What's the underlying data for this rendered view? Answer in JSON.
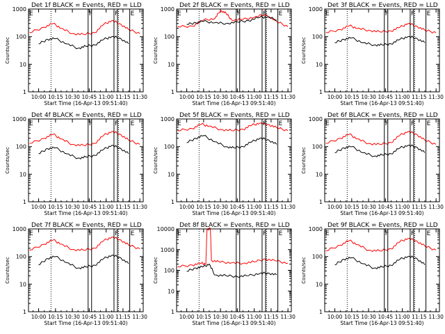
{
  "chart_data": [
    {
      "type": "line",
      "title": "Det 1f BLACK = Events, RED = LLD",
      "ylabel": "Counts/sec",
      "xlabel": "Start Time (16-Apr-13 09:51:40)",
      "yscale": "log",
      "ylim": [
        1,
        1000
      ],
      "yticks": [
        "1",
        "10",
        "100",
        "1000"
      ],
      "xticks": [
        "10:00",
        "10:15",
        "10:30",
        "10:45",
        "11:00",
        "11:15",
        "11:30"
      ],
      "markers": [
        "F",
        "F",
        "E"
      ],
      "series": [
        {
          "name": "LLD",
          "color": "#ff0000",
          "x": [
            "09:52",
            "10:05",
            "10:13",
            "10:20",
            "10:30",
            "10:40",
            "10:50",
            "10:58",
            "11:05",
            "11:12",
            "11:20",
            "11:30"
          ],
          "values": [
            140,
            220,
            300,
            200,
            130,
            120,
            140,
            280,
            380,
            300,
            180,
            130
          ]
        },
        {
          "name": "Events",
          "color": "#000000",
          "x": [
            "10:00",
            "10:08",
            "10:15",
            "10:25",
            "10:35",
            "10:42",
            "10:50",
            "10:58",
            "11:05",
            "11:12",
            "11:20"
          ],
          "values": [
            55,
            80,
            85,
            55,
            38,
            45,
            50,
            80,
            100,
            90,
            55
          ]
        }
      ]
    },
    {
      "type": "line",
      "title": "Det 2f BLACK = Events, RED = LLD",
      "ylabel": "Counts/sec",
      "xlabel": "Start Time (16-Apr-13 09:51:40)",
      "yscale": "log",
      "ylim": [
        1,
        1000
      ],
      "yticks": [
        "1",
        "10",
        "100",
        "1000"
      ],
      "xticks": [
        "10:00",
        "10:15",
        "10:30",
        "10:45",
        "11:00",
        "11:15",
        "11:30"
      ],
      "markers": [
        "F",
        "F",
        "E"
      ],
      "series": [
        {
          "name": "LLD",
          "color": "#ff0000",
          "x": [
            "09:52",
            "10:05",
            "10:15",
            "10:25",
            "10:30",
            "10:35",
            "10:40",
            "10:50",
            "11:00",
            "11:10",
            "11:20",
            "11:30"
          ],
          "values": [
            230,
            240,
            400,
            450,
            900,
            700,
            400,
            420,
            500,
            650,
            350,
            230
          ]
        },
        {
          "name": "Events",
          "color": "#000000",
          "x": [
            "10:00",
            "10:08",
            "10:15",
            "10:25",
            "10:35",
            "10:45",
            "10:55",
            "11:05",
            "11:12",
            "11:20"
          ],
          "values": [
            280,
            320,
            360,
            320,
            300,
            340,
            380,
            500,
            520,
            400
          ]
        }
      ]
    },
    {
      "type": "line",
      "title": "Det 3f BLACK = Events, RED = LLD",
      "ylabel": "Counts/sec",
      "xlabel": "Start Time (16-Apr-13 09:51:40)",
      "yscale": "log",
      "ylim": [
        1,
        1000
      ],
      "yticks": [
        "1",
        "10",
        "100",
        "1000"
      ],
      "xticks": [
        "10:00",
        "10:15",
        "10:30",
        "10:45",
        "11:00",
        "11:15",
        "11:30"
      ],
      "markers": [
        "F",
        "F",
        "E"
      ],
      "series": [
        {
          "name": "LLD",
          "color": "#ff0000",
          "x": [
            "09:52",
            "10:05",
            "10:13",
            "10:20",
            "10:30",
            "10:40",
            "10:50",
            "10:58",
            "11:05",
            "11:12",
            "11:20",
            "11:30"
          ],
          "values": [
            140,
            180,
            250,
            200,
            170,
            150,
            160,
            220,
            300,
            250,
            170,
            140
          ]
        },
        {
          "name": "Events",
          "color": "#000000",
          "x": [
            "10:00",
            "10:08",
            "10:15",
            "10:25",
            "10:35",
            "10:42",
            "10:50",
            "10:58",
            "11:05",
            "11:12",
            "11:20"
          ],
          "values": [
            60,
            80,
            90,
            60,
            50,
            50,
            55,
            80,
            100,
            90,
            60
          ]
        }
      ]
    },
    {
      "type": "line",
      "title": "Det 4f BLACK = Events, RED = LLD",
      "ylabel": "Counts/sec",
      "xlabel": "Start Time (16-Apr-13 09:51:40)",
      "yscale": "log",
      "ylim": [
        1,
        1000
      ],
      "yticks": [
        "1",
        "10",
        "100",
        "1000"
      ],
      "xticks": [
        "10:00",
        "10:15",
        "10:30",
        "10:45",
        "11:00",
        "11:15",
        "11:30"
      ],
      "markers": [
        "F",
        "F",
        "E"
      ],
      "series": [
        {
          "name": "LLD",
          "color": "#ff0000",
          "x": [
            "09:52",
            "10:05",
            "10:13",
            "10:20",
            "10:30",
            "10:40",
            "10:50",
            "10:58",
            "11:05",
            "11:12",
            "11:20",
            "11:30"
          ],
          "values": [
            130,
            200,
            280,
            190,
            120,
            110,
            130,
            260,
            350,
            290,
            170,
            120
          ]
        },
        {
          "name": "Events",
          "color": "#000000",
          "x": [
            "10:00",
            "10:08",
            "10:15",
            "10:25",
            "10:35",
            "10:42",
            "10:50",
            "10:58",
            "11:05",
            "11:12",
            "11:20"
          ],
          "values": [
            55,
            85,
            90,
            55,
            38,
            42,
            48,
            80,
            110,
            90,
            55
          ]
        }
      ]
    },
    {
      "type": "line",
      "title": "Det 5f BLACK = Events, RED = LLD",
      "ylabel": "Counts/sec",
      "xlabel": "Start Time (16-Apr-13 09:51:40)",
      "yscale": "log",
      "ylim": [
        1,
        1000
      ],
      "yticks": [
        "1",
        "10",
        "100",
        "1000"
      ],
      "xticks": [
        "10:00",
        "10:15",
        "10:30",
        "10:45",
        "11:00",
        "11:15",
        "11:30"
      ],
      "markers": [
        "F",
        "F",
        "E"
      ],
      "series": [
        {
          "name": "LLD",
          "color": "#ff0000",
          "x": [
            "09:52",
            "10:05",
            "10:13",
            "10:20",
            "10:30",
            "10:40",
            "10:50",
            "10:58",
            "11:05",
            "11:12",
            "11:20",
            "11:30"
          ],
          "values": [
            380,
            450,
            650,
            550,
            420,
            380,
            420,
            600,
            700,
            650,
            480,
            380
          ]
        },
        {
          "name": "Events",
          "color": "#000000",
          "x": [
            "10:00",
            "10:08",
            "10:15",
            "10:25",
            "10:35",
            "10:42",
            "10:50",
            "10:58",
            "11:05",
            "11:12",
            "11:20"
          ],
          "values": [
            140,
            200,
            250,
            150,
            100,
            90,
            100,
            150,
            200,
            180,
            120
          ]
        }
      ]
    },
    {
      "type": "line",
      "title": "Det 6f BLACK = Events, RED = LLD",
      "ylabel": "Counts/sec",
      "xlabel": "Start Time (16-Apr-13 09:51:40)",
      "yscale": "log",
      "ylim": [
        1,
        1000
      ],
      "yticks": [
        "1",
        "10",
        "100",
        "1000"
      ],
      "xticks": [
        "10:00",
        "10:15",
        "10:30",
        "10:45",
        "11:00",
        "11:15",
        "11:30"
      ],
      "markers": [
        "F",
        "F",
        "E"
      ],
      "series": [
        {
          "name": "LLD",
          "color": "#ff0000",
          "x": [
            "09:52",
            "10:05",
            "10:13",
            "10:20",
            "10:30",
            "10:40",
            "10:50",
            "10:58",
            "11:05",
            "11:12",
            "11:20",
            "11:30"
          ],
          "values": [
            130,
            200,
            280,
            190,
            130,
            120,
            140,
            260,
            350,
            290,
            170,
            120
          ]
        },
        {
          "name": "Events",
          "color": "#000000",
          "x": [
            "10:00",
            "10:08",
            "10:15",
            "10:25",
            "10:35",
            "10:42",
            "10:50",
            "10:58",
            "11:05",
            "11:12",
            "11:20"
          ],
          "values": [
            60,
            90,
            100,
            60,
            45,
            50,
            55,
            90,
            110,
            100,
            60
          ]
        }
      ]
    },
    {
      "type": "line",
      "title": "Det 7f BLACK = Events, RED = LLD",
      "ylabel": "Counts/sec",
      "xlabel": "Start Time (16-Apr-13 09:51:40)",
      "yscale": "log",
      "ylim": [
        1,
        1000
      ],
      "yticks": [
        "1",
        "10",
        "100",
        "1000"
      ],
      "xticks": [
        "10:00",
        "10:15",
        "10:30",
        "10:45",
        "11:00",
        "11:15",
        "11:30"
      ],
      "markers": [
        "F",
        "F",
        "E"
      ],
      "series": [
        {
          "name": "LLD",
          "color": "#ff0000",
          "x": [
            "09:52",
            "10:05",
            "10:13",
            "10:20",
            "10:30",
            "10:40",
            "10:50",
            "10:58",
            "11:05",
            "11:12",
            "11:20",
            "11:30"
          ],
          "values": [
            170,
            280,
            400,
            280,
            180,
            170,
            200,
            380,
            500,
            420,
            260,
            190
          ]
        },
        {
          "name": "Events",
          "color": "#000000",
          "x": [
            "10:00",
            "10:08",
            "10:15",
            "10:25",
            "10:35",
            "10:42",
            "10:50",
            "10:58",
            "11:05",
            "11:12",
            "11:20"
          ],
          "values": [
            50,
            85,
            100,
            60,
            38,
            42,
            48,
            85,
            110,
            95,
            55
          ]
        }
      ]
    },
    {
      "type": "line",
      "title": "Det 8f BLACK = Events, RED = LLD",
      "ylabel": "Counts/sec",
      "xlabel": "Start Time (16-Apr-13 09:51:40)",
      "yscale": "log",
      "ylim": [
        1,
        10000
      ],
      "yticks": [
        "1",
        "10",
        "100",
        "1000",
        "10000"
      ],
      "xticks": [
        "10:00",
        "10:15",
        "10:30",
        "10:45",
        "11:00",
        "11:15",
        "11:30"
      ],
      "markers": [
        "F",
        "F",
        "E"
      ],
      "series": [
        {
          "name": "LLD",
          "color": "#ff0000",
          "x": [
            "09:52",
            "10:05",
            "10:13",
            "10:17",
            "10:18",
            "10:21",
            "10:22",
            "10:30",
            "10:40",
            "10:50",
            "11:00",
            "11:10",
            "11:20",
            "11:30"
          ],
          "values": [
            150,
            180,
            220,
            200,
            10000,
            10000,
            300,
            250,
            230,
            220,
            260,
            350,
            280,
            220
          ]
        },
        {
          "name": "Events",
          "color": "#000000",
          "x": [
            "10:00",
            "10:08",
            "10:15",
            "10:20",
            "10:25",
            "10:35",
            "10:45",
            "10:55",
            "11:05",
            "11:12",
            "11:20"
          ],
          "values": [
            90,
            130,
            150,
            200,
            60,
            55,
            50,
            55,
            70,
            75,
            60
          ]
        }
      ]
    },
    {
      "type": "line",
      "title": "Det 9f BLACK = Events, RED = LLD",
      "ylabel": "Counts/sec",
      "xlabel": "Start Time (16-Apr-13 09:51:40)",
      "yscale": "log",
      "ylim": [
        1,
        1000
      ],
      "yticks": [
        "1",
        "10",
        "100",
        "1000"
      ],
      "xticks": [
        "10:00",
        "10:15",
        "10:30",
        "10:45",
        "11:00",
        "11:15",
        "11:30"
      ],
      "markers": [
        "F",
        "F",
        "E"
      ],
      "series": [
        {
          "name": "LLD",
          "color": "#ff0000",
          "x": [
            "09:52",
            "10:05",
            "10:13",
            "10:20",
            "10:30",
            "10:40",
            "10:50",
            "10:58",
            "11:05",
            "11:12",
            "11:20",
            "11:30"
          ],
          "values": [
            160,
            260,
            380,
            270,
            170,
            160,
            190,
            350,
            450,
            380,
            240,
            170
          ]
        },
        {
          "name": "Events",
          "color": "#000000",
          "x": [
            "10:00",
            "10:08",
            "10:15",
            "10:25",
            "10:35",
            "10:42",
            "10:50",
            "10:58",
            "11:05",
            "11:12",
            "11:20"
          ],
          "values": [
            50,
            80,
            90,
            55,
            38,
            42,
            48,
            80,
            100,
            90,
            50
          ]
        }
      ]
    }
  ]
}
